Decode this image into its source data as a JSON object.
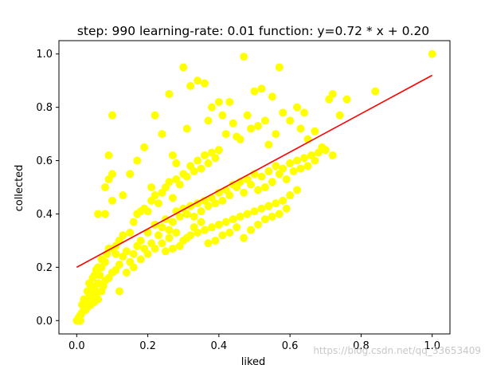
{
  "chart_data": {
    "type": "scatter",
    "title": "step: 990 learning-rate: 0.01 function: y=0.72 * x + 0.20",
    "xlabel": "liked",
    "ylabel": "collected",
    "xlim": [
      -0.05,
      1.05
    ],
    "ylim": [
      -0.05,
      1.05
    ],
    "xticks": [
      "0.0",
      "0.2",
      "0.4",
      "0.6",
      "0.8",
      "1.0"
    ],
    "yticks": [
      "0.0",
      "0.2",
      "0.4",
      "0.6",
      "0.8",
      "1.0"
    ],
    "grid": false,
    "points_color": "#ffff00",
    "line_color": "#ff0000",
    "fit_line": {
      "slope": 0.72,
      "intercept": 0.2,
      "x": [
        0.0,
        1.0
      ]
    },
    "points": [
      [
        0.0,
        0.0
      ],
      [
        0.005,
        0.01
      ],
      [
        0.01,
        0.0
      ],
      [
        0.01,
        0.02
      ],
      [
        0.015,
        0.03
      ],
      [
        0.02,
        0.05
      ],
      [
        0.02,
        0.06
      ],
      [
        0.025,
        0.04
      ],
      [
        0.03,
        0.07
      ],
      [
        0.03,
        0.05
      ],
      [
        0.035,
        0.09
      ],
      [
        0.04,
        0.06
      ],
      [
        0.04,
        0.1
      ],
      [
        0.045,
        0.08
      ],
      [
        0.05,
        0.12
      ],
      [
        0.05,
        0.07
      ],
      [
        0.055,
        0.1
      ],
      [
        0.06,
        0.14
      ],
      [
        0.06,
        0.08
      ],
      [
        0.065,
        0.17
      ],
      [
        0.07,
        0.11
      ],
      [
        0.07,
        0.2
      ],
      [
        0.075,
        0.13
      ],
      [
        0.08,
        0.22
      ],
      [
        0.08,
        0.15
      ],
      [
        0.085,
        0.25
      ],
      [
        0.09,
        0.27
      ],
      [
        0.1,
        0.27
      ],
      [
        0.1,
        0.18
      ],
      [
        0.11,
        0.25
      ],
      [
        0.12,
        0.3
      ],
      [
        0.12,
        0.11
      ],
      [
        0.13,
        0.32
      ],
      [
        0.14,
        0.26
      ],
      [
        0.15,
        0.33
      ],
      [
        0.16,
        0.37
      ],
      [
        0.17,
        0.4
      ],
      [
        0.18,
        0.41
      ],
      [
        0.19,
        0.42
      ],
      [
        0.2,
        0.41
      ],
      [
        0.21,
        0.45
      ],
      [
        0.22,
        0.47
      ],
      [
        0.23,
        0.44
      ],
      [
        0.24,
        0.48
      ],
      [
        0.25,
        0.5
      ],
      [
        0.26,
        0.52
      ],
      [
        0.27,
        0.46
      ],
      [
        0.28,
        0.53
      ],
      [
        0.29,
        0.51
      ],
      [
        0.3,
        0.55
      ],
      [
        0.31,
        0.54
      ],
      [
        0.32,
        0.58
      ],
      [
        0.33,
        0.56
      ],
      [
        0.34,
        0.6
      ],
      [
        0.35,
        0.57
      ],
      [
        0.36,
        0.62
      ],
      [
        0.37,
        0.59
      ],
      [
        0.38,
        0.63
      ],
      [
        0.39,
        0.61
      ],
      [
        0.4,
        0.64
      ],
      [
        0.15,
        0.22
      ],
      [
        0.16,
        0.25
      ],
      [
        0.17,
        0.28
      ],
      [
        0.18,
        0.3
      ],
      [
        0.19,
        0.27
      ],
      [
        0.2,
        0.33
      ],
      [
        0.21,
        0.29
      ],
      [
        0.22,
        0.36
      ],
      [
        0.23,
        0.32
      ],
      [
        0.24,
        0.35
      ],
      [
        0.25,
        0.38
      ],
      [
        0.26,
        0.34
      ],
      [
        0.27,
        0.37
      ],
      [
        0.28,
        0.41
      ],
      [
        0.29,
        0.39
      ],
      [
        0.3,
        0.42
      ],
      [
        0.31,
        0.4
      ],
      [
        0.32,
        0.43
      ],
      [
        0.33,
        0.39
      ],
      [
        0.34,
        0.44
      ],
      [
        0.35,
        0.41
      ],
      [
        0.36,
        0.45
      ],
      [
        0.37,
        0.43
      ],
      [
        0.38,
        0.46
      ],
      [
        0.39,
        0.44
      ],
      [
        0.4,
        0.48
      ],
      [
        0.41,
        0.45
      ],
      [
        0.42,
        0.49
      ],
      [
        0.43,
        0.47
      ],
      [
        0.44,
        0.51
      ],
      [
        0.45,
        0.5
      ],
      [
        0.46,
        0.52
      ],
      [
        0.47,
        0.48
      ],
      [
        0.48,
        0.53
      ],
      [
        0.49,
        0.51
      ],
      [
        0.5,
        0.55
      ],
      [
        0.51,
        0.49
      ],
      [
        0.52,
        0.54
      ],
      [
        0.53,
        0.5
      ],
      [
        0.54,
        0.56
      ],
      [
        0.55,
        0.52
      ],
      [
        0.56,
        0.58
      ],
      [
        0.57,
        0.55
      ],
      [
        0.58,
        0.57
      ],
      [
        0.59,
        0.53
      ],
      [
        0.6,
        0.59
      ],
      [
        0.61,
        0.56
      ],
      [
        0.62,
        0.6
      ],
      [
        0.63,
        0.57
      ],
      [
        0.64,
        0.61
      ],
      [
        0.65,
        0.58
      ],
      [
        0.66,
        0.62
      ],
      [
        0.67,
        0.6
      ],
      [
        0.68,
        0.63
      ],
      [
        0.7,
        0.64
      ],
      [
        0.72,
        0.62
      ],
      [
        0.3,
        0.3
      ],
      [
        0.32,
        0.32
      ],
      [
        0.34,
        0.33
      ],
      [
        0.36,
        0.34
      ],
      [
        0.38,
        0.35
      ],
      [
        0.4,
        0.36
      ],
      [
        0.42,
        0.37
      ],
      [
        0.44,
        0.38
      ],
      [
        0.46,
        0.39
      ],
      [
        0.48,
        0.4
      ],
      [
        0.5,
        0.41
      ],
      [
        0.52,
        0.42
      ],
      [
        0.54,
        0.43
      ],
      [
        0.56,
        0.44
      ],
      [
        0.58,
        0.45
      ],
      [
        0.6,
        0.47
      ],
      [
        0.62,
        0.49
      ],
      [
        0.33,
        0.35
      ],
      [
        0.35,
        0.37
      ],
      [
        0.37,
        0.29
      ],
      [
        0.39,
        0.3
      ],
      [
        0.41,
        0.32
      ],
      [
        0.43,
        0.33
      ],
      [
        0.45,
        0.35
      ],
      [
        0.47,
        0.31
      ],
      [
        0.49,
        0.34
      ],
      [
        0.51,
        0.36
      ],
      [
        0.53,
        0.38
      ],
      [
        0.55,
        0.39
      ],
      [
        0.57,
        0.4
      ],
      [
        0.59,
        0.42
      ],
      [
        0.25,
        0.26
      ],
      [
        0.27,
        0.27
      ],
      [
        0.29,
        0.28
      ],
      [
        0.31,
        0.31
      ],
      [
        0.28,
        0.33
      ],
      [
        0.26,
        0.31
      ],
      [
        0.24,
        0.29
      ],
      [
        0.22,
        0.27
      ],
      [
        0.2,
        0.25
      ],
      [
        0.18,
        0.23
      ],
      [
        0.16,
        0.2
      ],
      [
        0.14,
        0.18
      ],
      [
        0.08,
        0.5
      ],
      [
        0.09,
        0.53
      ],
      [
        0.1,
        0.55
      ],
      [
        0.09,
        0.62
      ],
      [
        0.1,
        0.77
      ],
      [
        0.08,
        0.4
      ],
      [
        0.06,
        0.4
      ],
      [
        0.1,
        0.45
      ],
      [
        0.13,
        0.47
      ],
      [
        0.15,
        0.55
      ],
      [
        0.17,
        0.6
      ],
      [
        0.19,
        0.65
      ],
      [
        0.21,
        0.5
      ],
      [
        0.22,
        0.77
      ],
      [
        0.24,
        0.7
      ],
      [
        0.26,
        0.85
      ],
      [
        0.27,
        0.62
      ],
      [
        0.28,
        0.59
      ],
      [
        0.3,
        0.95
      ],
      [
        0.31,
        0.72
      ],
      [
        0.32,
        0.88
      ],
      [
        0.34,
        0.9
      ],
      [
        0.36,
        0.89
      ],
      [
        0.37,
        0.75
      ],
      [
        0.38,
        0.8
      ],
      [
        0.4,
        0.82
      ],
      [
        0.41,
        0.77
      ],
      [
        0.42,
        0.7
      ],
      [
        0.43,
        0.82
      ],
      [
        0.44,
        0.74
      ],
      [
        0.45,
        0.69
      ],
      [
        0.46,
        0.68
      ],
      [
        0.47,
        0.99
      ],
      [
        0.48,
        0.77
      ],
      [
        0.49,
        0.72
      ],
      [
        0.5,
        0.86
      ],
      [
        0.51,
        0.73
      ],
      [
        0.52,
        0.87
      ],
      [
        0.53,
        0.75
      ],
      [
        0.54,
        0.66
      ],
      [
        0.55,
        0.84
      ],
      [
        0.56,
        0.7
      ],
      [
        0.57,
        0.95
      ],
      [
        0.58,
        0.78
      ],
      [
        0.6,
        0.75
      ],
      [
        0.62,
        0.8
      ],
      [
        0.63,
        0.72
      ],
      [
        0.64,
        0.78
      ],
      [
        0.65,
        0.68
      ],
      [
        0.67,
        0.71
      ],
      [
        0.69,
        0.65
      ],
      [
        0.71,
        0.83
      ],
      [
        0.72,
        0.85
      ],
      [
        0.74,
        0.77
      ],
      [
        0.76,
        0.83
      ],
      [
        0.84,
        0.86
      ],
      [
        1.0,
        1.0
      ],
      [
        0.05,
        0.17
      ],
      [
        0.06,
        0.2
      ],
      [
        0.07,
        0.23
      ],
      [
        0.09,
        0.16
      ],
      [
        0.11,
        0.19
      ],
      [
        0.12,
        0.21
      ],
      [
        0.13,
        0.24
      ],
      [
        0.11,
        0.28
      ],
      [
        0.035,
        0.14
      ],
      [
        0.045,
        0.16
      ],
      [
        0.055,
        0.19
      ],
      [
        0.03,
        0.11
      ],
      [
        0.04,
        0.13
      ],
      [
        0.02,
        0.08
      ],
      [
        0.015,
        0.06
      ]
    ],
    "watermark": "https://blog.csdn.net/qq_33653409"
  }
}
